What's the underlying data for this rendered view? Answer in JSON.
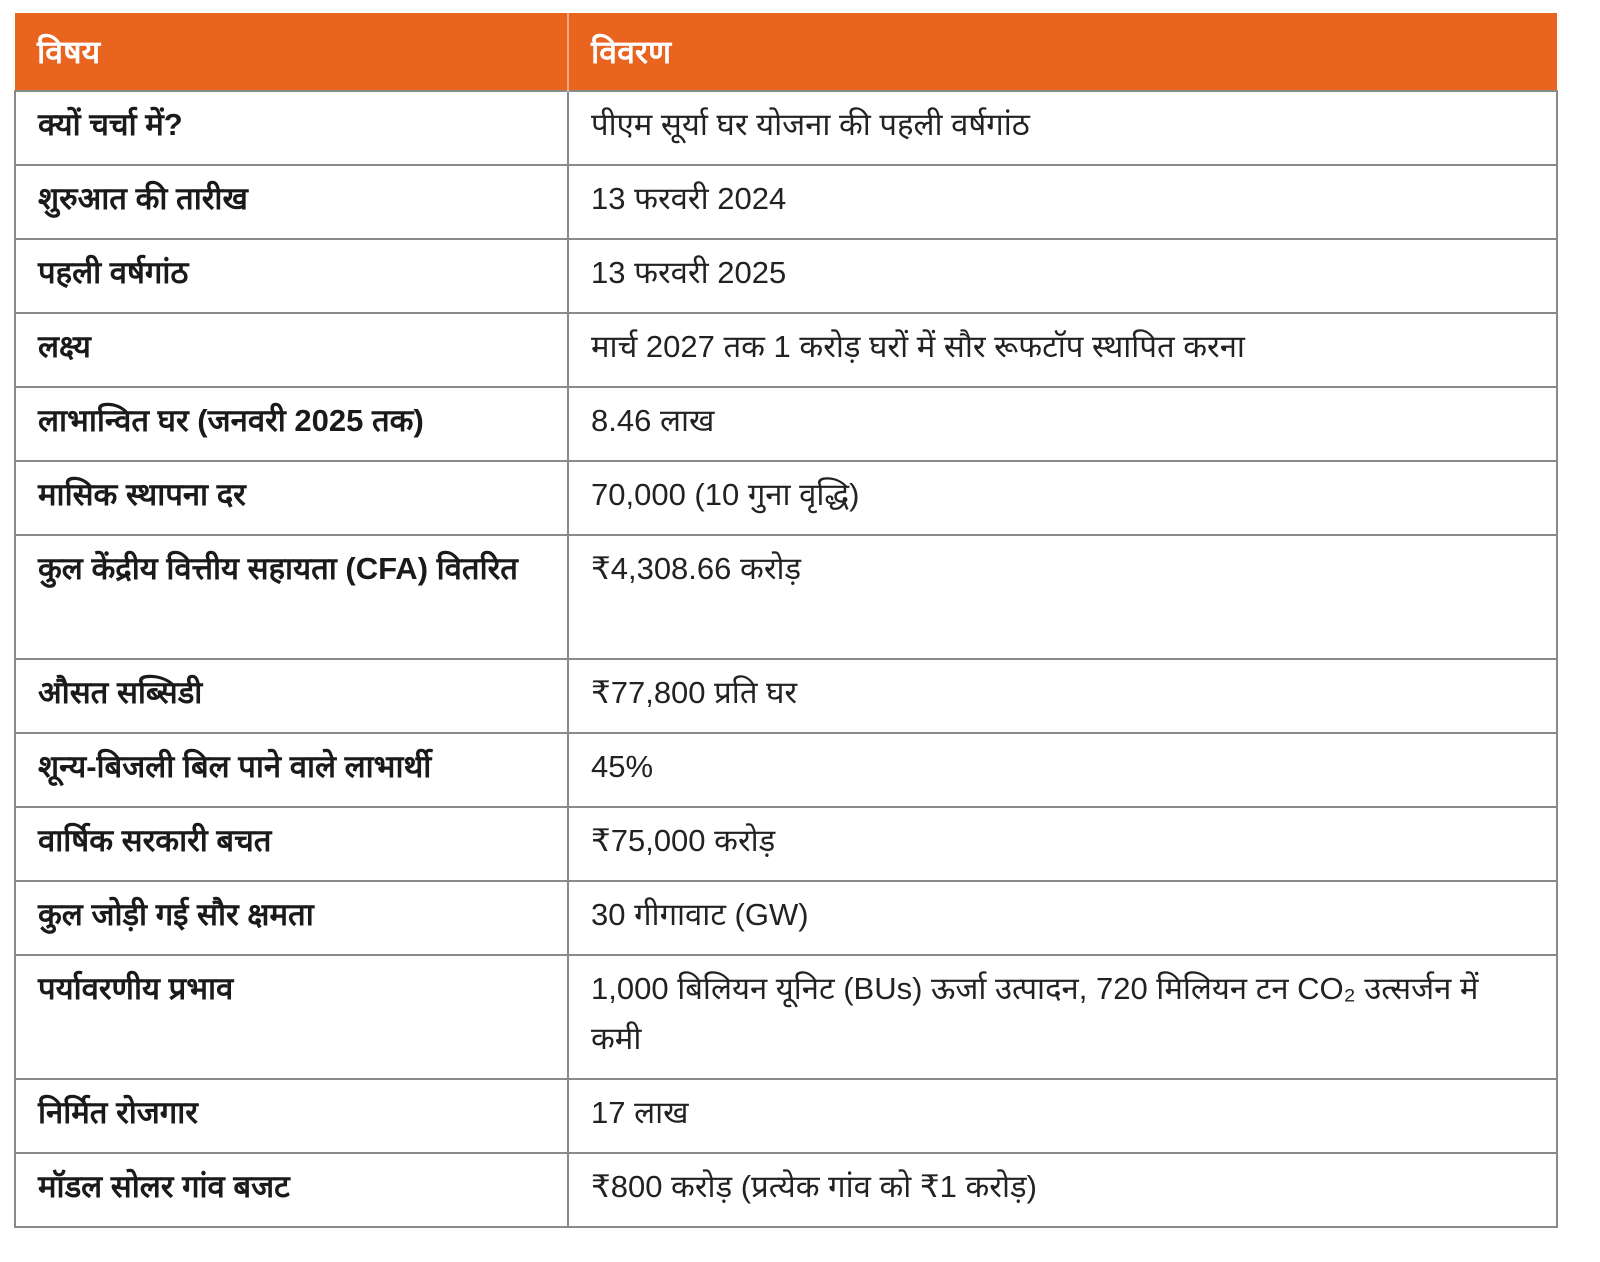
{
  "header": {
    "col1": "विषय",
    "col2": "विवरण"
  },
  "rows": [
    {
      "k": "क्यों चर्चा में?",
      "v": "पीएम सूर्या घर योजना की पहली वर्षगांठ"
    },
    {
      "k": "शुरुआत की तारीख",
      "v": "13 फरवरी 2024"
    },
    {
      "k": "पहली वर्षगांठ",
      "v": "13 फरवरी 2025"
    },
    {
      "k": "लक्ष्य",
      "v": "मार्च 2027 तक 1 करोड़ घरों में सौर रूफटॉप स्थापित करना"
    },
    {
      "k": "लाभान्वित घर (जनवरी 2025 तक)",
      "v": "8.46 लाख"
    },
    {
      "k": "मासिक स्थापना दर",
      "v": "70,000 (10 गुना वृद्धि)"
    },
    {
      "k": "कुल केंद्रीय वित्तीय सहायता (CFA) वितरित",
      "v": "₹4,308.66 करोड़"
    },
    {
      "k": "औसत सब्सिडी",
      "v": "₹77,800 प्रति घर"
    },
    {
      "k": "शून्य-बिजली बिल पाने वाले लाभार्थी",
      "v": "45%"
    },
    {
      "k": "वार्षिक सरकारी बचत",
      "v": "₹75,000 करोड़"
    },
    {
      "k": "कुल जोड़ी गई सौर क्षमता",
      "v": "30 गीगावाट (GW)"
    },
    {
      "k": "पर्यावरणीय प्रभाव",
      "v": "1,000 बिलियन यूनिट (BUs) ऊर्जा उत्पादन, 720 मिलियन टन CO₂ उत्सर्जन में कमी"
    },
    {
      "k": "निर्मित रोजगार",
      "v": "17 लाख"
    },
    {
      "k": "मॉडल सोलर गांव बजट",
      "v": "₹800 करोड़ (प्रत्येक गांव को ₹1 करोड़)"
    }
  ]
}
